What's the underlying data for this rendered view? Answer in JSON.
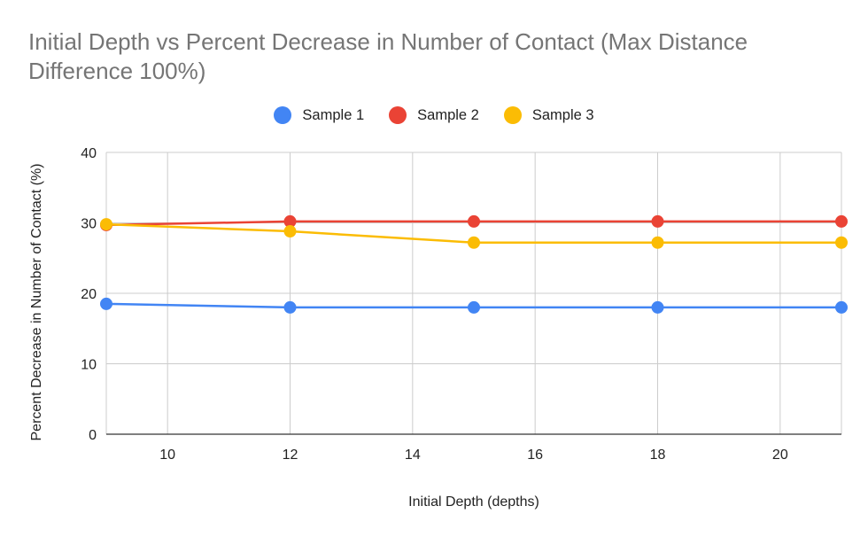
{
  "chart_data": {
    "type": "line",
    "title": "Initial Depth vs Percent Decrease in Number of Contact (Max Distance Difference 100%)",
    "xlabel": "Initial Depth (depths)",
    "ylabel": "Percent Decrease in Number of Contact (%)",
    "xlim": [
      9,
      21
    ],
    "ylim": [
      0,
      40
    ],
    "x_ticks": [
      "10",
      "12",
      "14",
      "16",
      "18",
      "20"
    ],
    "y_ticks": [
      "0",
      "10",
      "20",
      "30",
      "40"
    ],
    "x": [
      9,
      12,
      15,
      18,
      21
    ],
    "grid": true,
    "legend_position": "top",
    "series": [
      {
        "name": "Sample 1",
        "color": "#4285F4",
        "values": [
          18.5,
          18.0,
          18.0,
          18.0,
          18.0
        ]
      },
      {
        "name": "Sample 2",
        "color": "#EA4335",
        "values": [
          29.7,
          30.2,
          30.2,
          30.2,
          30.2
        ]
      },
      {
        "name": "Sample 3",
        "color": "#FBBC04",
        "values": [
          29.8,
          28.8,
          27.2,
          27.2,
          27.2
        ]
      }
    ]
  }
}
